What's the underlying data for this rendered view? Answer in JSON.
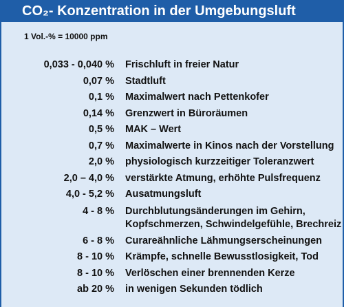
{
  "title": "CO₂- Konzentration in der Umgebungsluft",
  "subtitle": "1 Vol.-% = 10000 ppm",
  "rows": [
    {
      "value": "0,033 - 0,040 %",
      "description": "Frischluft in freier Natur"
    },
    {
      "value": "0,07 %",
      "description": "Stadtluft"
    },
    {
      "value": "0,1 %",
      "description": "Maximalwert nach Pettenkofer"
    },
    {
      "value": "0,14 %",
      "description": "Grenzwert in Büroräumen"
    },
    {
      "value": "0,5 %",
      "description": "MAK – Wert"
    },
    {
      "value": "0,7 %",
      "description": "Maximalwerte in Kinos nach der Vorstellung"
    },
    {
      "value": "2,0 %",
      "description": "physiologisch kurzzeitiger Toleranzwert"
    },
    {
      "value": "2,0 – 4,0 %",
      "description": "verstärkte Atmung, erhöhte Pulsfrequenz"
    },
    {
      "value": "4,0 - 5,2 %",
      "description": "Ausatmungsluft"
    },
    {
      "value": "4 - 8 %",
      "description": "Durchblutungsänderungen im Gehirn,\nKopfschmerzen, Schwindelgefühle, Brechreiz"
    },
    {
      "value": "6 - 8 %",
      "description": "Curareähnliche Lähmungserscheinungen"
    },
    {
      "value": "8 - 10 %",
      "description": "Krämpfe, schnelle Bewusstlosigkeit, Tod"
    },
    {
      "value": "8 - 10 %",
      "description": "Verlöschen einer brennenden Kerze"
    },
    {
      "value": "ab 20 %",
      "description": "in wenigen Sekunden tödlich"
    }
  ],
  "colors": {
    "header": "#1f5ea8",
    "background": "#dde9f6"
  }
}
